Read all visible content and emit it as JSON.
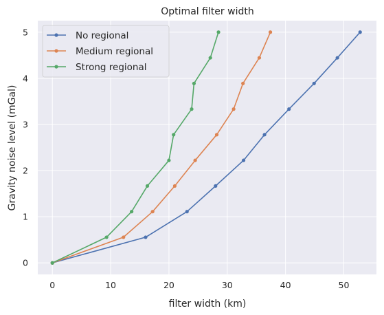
{
  "chart_data": {
    "type": "line",
    "title": "Optimal filter width",
    "xlabel": "filter width (km)",
    "ylabel": "Gravity noise level (mGal)",
    "xlim": [
      -2.5,
      55.6
    ],
    "ylim": [
      -0.25,
      5.25
    ],
    "x_ticks": [
      0,
      10,
      20,
      30,
      40,
      50
    ],
    "y_ticks": [
      0,
      1,
      2,
      3,
      4,
      5
    ],
    "grid": true,
    "legend_position": "upper-left",
    "background": "#eaeaf2",
    "grid_color": "#ffffff",
    "series": [
      {
        "name": "No regional",
        "color": "#4c72b0",
        "x": [
          0,
          16.0,
          23.1,
          28.0,
          32.8,
          36.4,
          40.6,
          44.9,
          48.9,
          52.8
        ],
        "y": [
          0,
          0.556,
          1.111,
          1.667,
          2.222,
          2.778,
          3.333,
          3.889,
          4.444,
          5.0
        ]
      },
      {
        "name": "Medium regional",
        "color": "#dd8452",
        "x": [
          0,
          12.2,
          17.2,
          21.0,
          24.5,
          28.2,
          31.1,
          32.7,
          35.5,
          37.4
        ],
        "y": [
          0,
          0.556,
          1.111,
          1.667,
          2.222,
          2.778,
          3.333,
          3.889,
          4.444,
          5.0
        ]
      },
      {
        "name": "Strong regional",
        "color": "#55a868",
        "x": [
          0,
          9.3,
          13.6,
          16.3,
          20.0,
          20.8,
          23.9,
          24.3,
          27.1,
          28.5
        ],
        "y": [
          0,
          0.556,
          1.111,
          1.667,
          2.222,
          2.778,
          3.333,
          3.889,
          4.444,
          5.0
        ]
      }
    ]
  }
}
